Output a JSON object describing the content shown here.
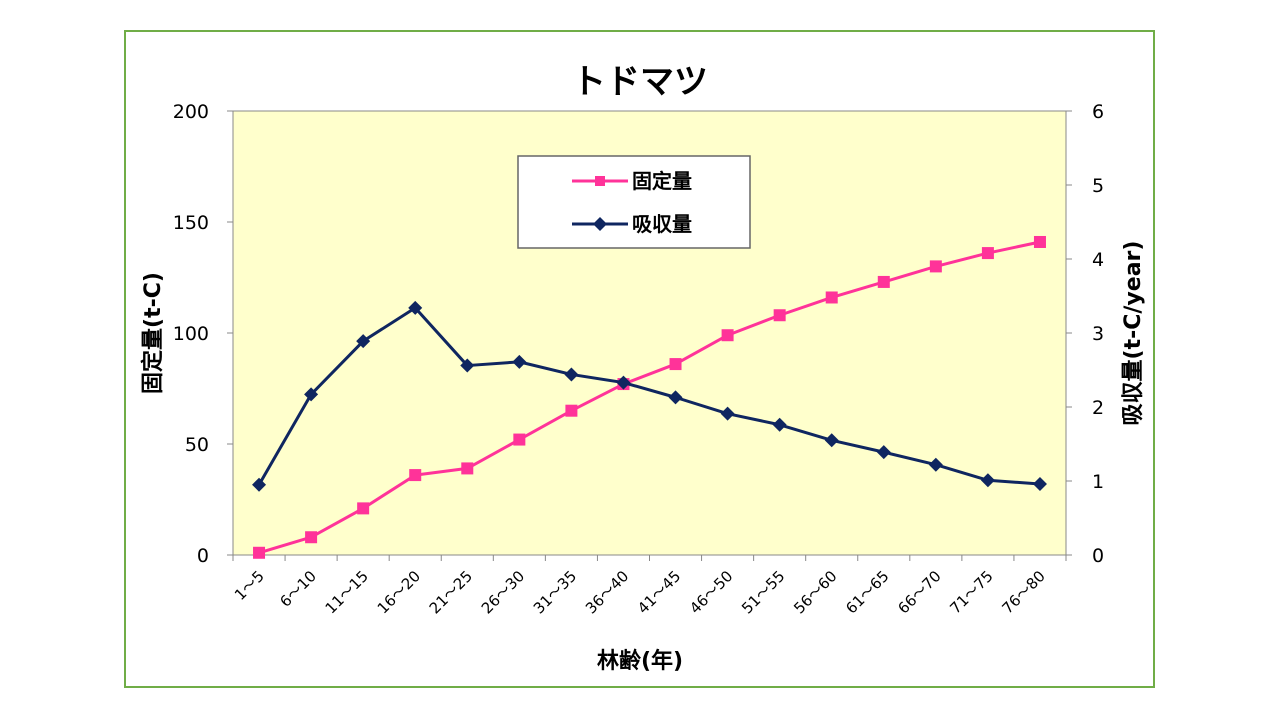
{
  "chart_data": {
    "type": "line",
    "title": "トドマツ",
    "xlabel": "林齢(年)",
    "ylabel_left": "固定量(t-C)",
    "ylabel_right": "吸収量(t-C/year)",
    "categories": [
      "1～5",
      "6～10",
      "11～15",
      "16～20",
      "21～25",
      "26～30",
      "31～35",
      "36～40",
      "41～45",
      "46～50",
      "51～55",
      "56～60",
      "61～65",
      "66～70",
      "71～75",
      "76～80"
    ],
    "ylim_left": [
      0,
      200
    ],
    "yticks_left": [
      0,
      50,
      100,
      150,
      200
    ],
    "ylim_right": [
      0,
      6
    ],
    "yticks_right": [
      0,
      1,
      2,
      3,
      4,
      5,
      6
    ],
    "legend_position": "top-center",
    "series": [
      {
        "name": "固定量",
        "axis": "left",
        "color": "#ff3399",
        "marker": "square",
        "values": [
          1,
          8,
          21,
          36,
          39,
          52,
          65,
          77,
          86,
          99,
          108,
          116,
          123,
          130,
          136,
          141
        ]
      },
      {
        "name": "吸収量",
        "axis": "right",
        "color": "#0f2660",
        "marker": "diamond",
        "values": [
          0.95,
          2.17,
          2.89,
          3.34,
          2.56,
          2.61,
          2.44,
          2.33,
          2.13,
          1.91,
          1.76,
          1.55,
          1.39,
          1.22,
          1.01,
          0.96
        ]
      }
    ]
  }
}
